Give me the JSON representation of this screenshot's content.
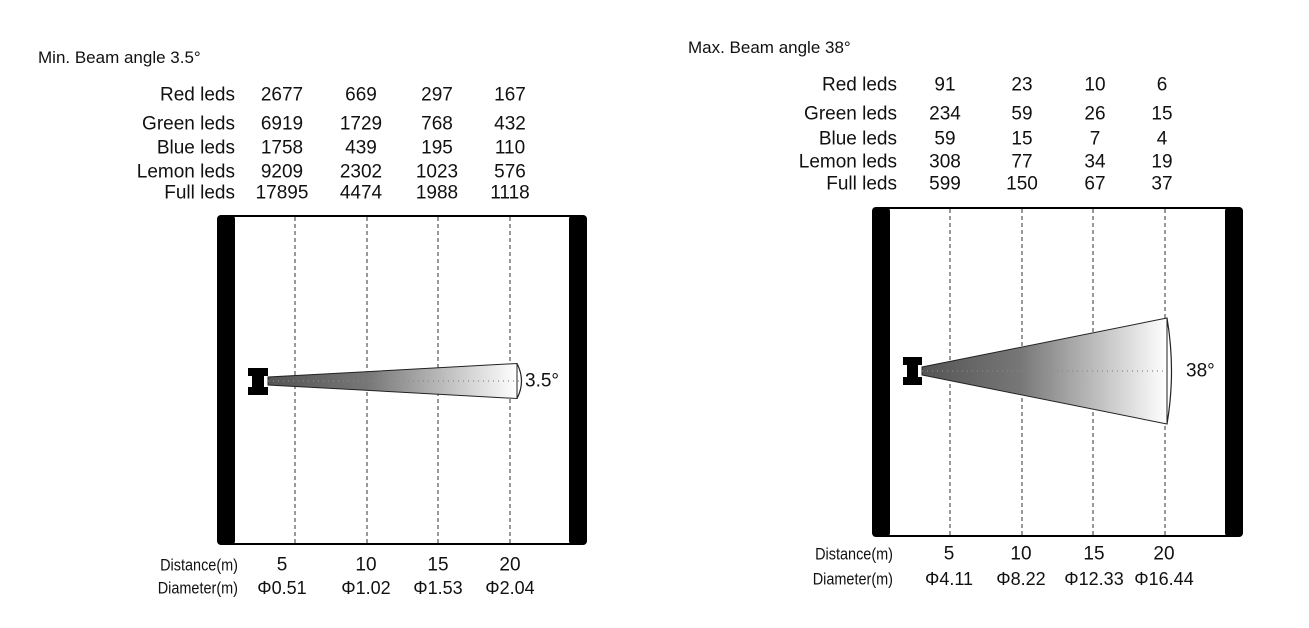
{
  "panels": [
    {
      "title": "Min. Beam angle 3.5°",
      "beam_angle_label": "3.5°",
      "rows": [
        {
          "label": "Red leds",
          "values": [
            "2677",
            "669",
            "297",
            "167"
          ]
        },
        {
          "label": "Green leds",
          "values": [
            "6919",
            "1729",
            "768",
            "432"
          ]
        },
        {
          "label": "Blue leds",
          "values": [
            "1758",
            "439",
            "195",
            "110"
          ]
        },
        {
          "label": "Lemon leds",
          "values": [
            "9209",
            "2302",
            "1023",
            "576"
          ]
        },
        {
          "label": "Full leds",
          "values": [
            "17895",
            "4474",
            "1988",
            "1118"
          ]
        }
      ],
      "distance_label": "Distance(m)",
      "distances": [
        "5",
        "10",
        "15",
        "20"
      ],
      "diameter_label": "Diameter(m)",
      "diameters": [
        "Φ0.51",
        "Φ1.02",
        "Φ1.53",
        "Φ2.04"
      ]
    },
    {
      "title": "Max. Beam angle 38°",
      "beam_angle_label": "38°",
      "rows": [
        {
          "label": "Red leds",
          "values": [
            "91",
            "23",
            "10",
            "6"
          ]
        },
        {
          "label": "Green leds",
          "values": [
            "234",
            "59",
            "26",
            "15"
          ]
        },
        {
          "label": "Blue leds",
          "values": [
            "59",
            "15",
            "7",
            "4"
          ]
        },
        {
          "label": "Lemon leds",
          "values": [
            "308",
            "77",
            "34",
            "19"
          ]
        },
        {
          "label": "Full leds",
          "values": [
            "599",
            "150",
            "67",
            "37"
          ]
        }
      ],
      "distance_label": "Distance(m)",
      "distances": [
        "5",
        "10",
        "15",
        "20"
      ],
      "diameter_label": "Diameter(m)",
      "diameters": [
        "Φ4.11",
        "Φ8.22",
        "Φ12.33",
        "Φ16.44"
      ]
    }
  ]
}
